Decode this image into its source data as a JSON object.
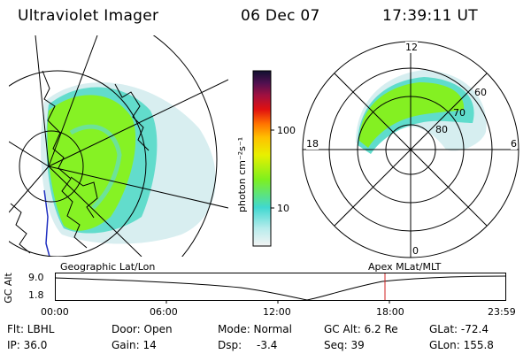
{
  "header": {
    "instrument": "Ultraviolet Imager",
    "date": "06 Dec 07",
    "time": "17:39:11 UT"
  },
  "colorbar": {
    "unit_label": "photon cm⁻²s⁻¹",
    "ticks": [
      "100",
      "10"
    ]
  },
  "polar": {
    "mlt_labels": {
      "top": "12",
      "left": "18",
      "right": "6",
      "bottom": "0"
    },
    "lat_labels": [
      "60",
      "70",
      "80"
    ]
  },
  "panels": {
    "left_label": "Geographic Lat/Lon",
    "right_label": "Apex MLat/MLT"
  },
  "orbit_plot": {
    "ylabel": "GC Alt",
    "yticks": [
      "9.0",
      "1.8"
    ],
    "xticks": [
      "00:00",
      "06:00",
      "12:00",
      "18:00",
      "23:59"
    ],
    "marker_time": "17:39"
  },
  "meta": {
    "filter": "Flt: LBHL",
    "ip": "IP: 36.0",
    "door": "Door: Open",
    "gain": "Gain: 14",
    "mode": "Mode: Normal",
    "dsp_label": "Dsp:",
    "dsp_value": "-3.4",
    "gc_alt": "GC Alt: 6.2 Re",
    "seq": "Seq: 39",
    "glat": "GLat: -72.4",
    "glon": "GLon: 155.8"
  },
  "colors": {
    "aurora_green": "#7ef01e",
    "aurora_cyan": "#5fe0d0",
    "aurora_pale": "#cfeaea",
    "marker_red": "#d02020",
    "coast_blue": "#2030c0"
  }
}
